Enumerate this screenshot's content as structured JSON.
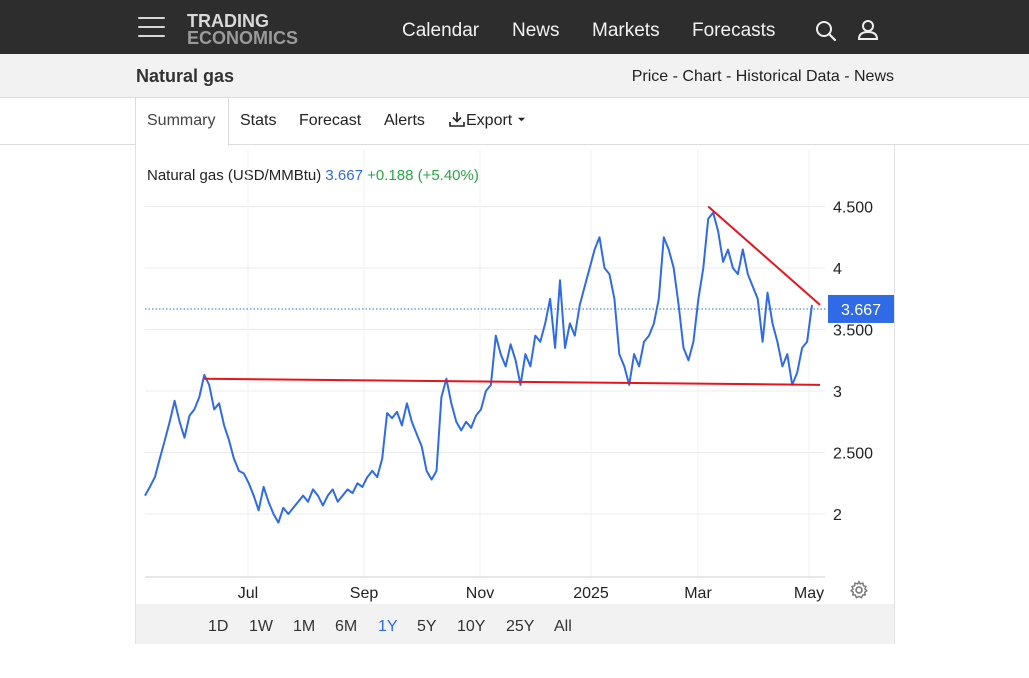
{
  "nav": {
    "logo_line1": "TRADING",
    "logo_line2": "ECONOMICS",
    "items": [
      "Calendar",
      "News",
      "Markets",
      "Forecasts"
    ]
  },
  "title": {
    "name": "Natural gas",
    "links": [
      "Price",
      "Chart",
      "Historical Data",
      "News"
    ],
    "separator": " - "
  },
  "tabs": [
    "Summary",
    "Stats",
    "Forecast",
    "Alerts",
    "Export"
  ],
  "legend": {
    "name": "Natural gas (USD/MMBtu)",
    "price": "3.667",
    "change": "+0.188 (+5.40%)"
  },
  "ranges": [
    "1D",
    "1W",
    "1M",
    "6M",
    "1Y",
    "5Y",
    "10Y",
    "25Y",
    "All"
  ],
  "active_range": "1Y",
  "colors": {
    "line": "#2f6be6",
    "trendline": "#e8141c",
    "positive": "#28a745",
    "price_badge": "#2f6be6"
  },
  "chart_data": {
    "type": "line",
    "title": "Natural gas (USD/MMBtu)",
    "series": [
      {
        "name": "Natural gas",
        "x_index_start": "2024-05-20",
        "points": [
          [
            "2024-05-20",
            2.15
          ],
          [
            "2024-05-22",
            2.22
          ],
          [
            "2024-05-24",
            2.3
          ],
          [
            "2024-05-27",
            2.45
          ],
          [
            "2024-05-29",
            2.6
          ],
          [
            "2024-05-31",
            2.75
          ],
          [
            "2024-06-03",
            2.92
          ],
          [
            "2024-06-05",
            2.75
          ],
          [
            "2024-06-07",
            2.62
          ],
          [
            "2024-06-10",
            2.8
          ],
          [
            "2024-06-12",
            2.85
          ],
          [
            "2024-06-14",
            2.95
          ],
          [
            "2024-06-17",
            3.13
          ],
          [
            "2024-06-19",
            3.05
          ],
          [
            "2024-06-21",
            2.85
          ],
          [
            "2024-06-24",
            2.9
          ],
          [
            "2024-06-26",
            2.72
          ],
          [
            "2024-06-28",
            2.6
          ],
          [
            "2024-07-01",
            2.45
          ],
          [
            "2024-07-03",
            2.35
          ],
          [
            "2024-07-05",
            2.33
          ],
          [
            "2024-07-08",
            2.25
          ],
          [
            "2024-07-10",
            2.15
          ],
          [
            "2024-07-12",
            2.03
          ],
          [
            "2024-07-15",
            2.22
          ],
          [
            "2024-07-17",
            2.1
          ],
          [
            "2024-07-19",
            2.0
          ],
          [
            "2024-07-22",
            1.93
          ],
          [
            "2024-07-24",
            2.05
          ],
          [
            "2024-07-26",
            2.0
          ],
          [
            "2024-07-29",
            2.05
          ],
          [
            "2024-07-31",
            2.1
          ],
          [
            "2024-08-02",
            2.15
          ],
          [
            "2024-08-05",
            2.1
          ],
          [
            "2024-08-07",
            2.2
          ],
          [
            "2024-08-09",
            2.15
          ],
          [
            "2024-08-12",
            2.07
          ],
          [
            "2024-08-14",
            2.15
          ],
          [
            "2024-08-16",
            2.2
          ],
          [
            "2024-08-19",
            2.1
          ],
          [
            "2024-08-21",
            2.15
          ],
          [
            "2024-08-23",
            2.2
          ],
          [
            "2024-08-26",
            2.17
          ],
          [
            "2024-08-28",
            2.25
          ],
          [
            "2024-08-30",
            2.22
          ],
          [
            "2024-09-02",
            2.3
          ],
          [
            "2024-09-04",
            2.35
          ],
          [
            "2024-09-06",
            2.3
          ],
          [
            "2024-09-09",
            2.45
          ],
          [
            "2024-09-11",
            2.82
          ],
          [
            "2024-09-13",
            2.78
          ],
          [
            "2024-09-16",
            2.83
          ],
          [
            "2024-09-18",
            2.72
          ],
          [
            "2024-09-20",
            2.9
          ],
          [
            "2024-09-23",
            2.75
          ],
          [
            "2024-09-25",
            2.65
          ],
          [
            "2024-09-27",
            2.55
          ],
          [
            "2024-09-30",
            2.35
          ],
          [
            "2024-10-02",
            2.28
          ],
          [
            "2024-10-04",
            2.35
          ],
          [
            "2024-10-07",
            2.95
          ],
          [
            "2024-10-09",
            3.1
          ],
          [
            "2024-10-11",
            2.9
          ],
          [
            "2024-10-14",
            2.75
          ],
          [
            "2024-10-16",
            2.68
          ],
          [
            "2024-10-18",
            2.75
          ],
          [
            "2024-10-21",
            2.7
          ],
          [
            "2024-10-23",
            2.8
          ],
          [
            "2024-10-25",
            2.85
          ],
          [
            "2024-10-28",
            3.0
          ],
          [
            "2024-10-30",
            3.05
          ],
          [
            "2024-11-01",
            3.45
          ],
          [
            "2024-11-04",
            3.3
          ],
          [
            "2024-11-06",
            3.2
          ],
          [
            "2024-11-08",
            3.38
          ],
          [
            "2024-11-11",
            3.25
          ],
          [
            "2024-11-13",
            3.05
          ],
          [
            "2024-11-15",
            3.3
          ],
          [
            "2024-11-18",
            3.2
          ],
          [
            "2024-11-20",
            3.45
          ],
          [
            "2024-11-22",
            3.4
          ],
          [
            "2024-11-25",
            3.55
          ],
          [
            "2024-11-27",
            3.75
          ],
          [
            "2024-11-29",
            3.35
          ],
          [
            "2024-12-02",
            3.9
          ],
          [
            "2024-12-04",
            3.35
          ],
          [
            "2024-12-06",
            3.55
          ],
          [
            "2024-12-09",
            3.45
          ],
          [
            "2024-12-11",
            3.7
          ],
          [
            "2024-12-13",
            3.85
          ],
          [
            "2024-12-16",
            4.0
          ],
          [
            "2024-12-18",
            4.15
          ],
          [
            "2024-12-20",
            4.25
          ],
          [
            "2024-12-23",
            4.0
          ],
          [
            "2024-12-25",
            3.95
          ],
          [
            "2024-12-27",
            3.75
          ],
          [
            "2024-12-30",
            3.3
          ],
          [
            "2025-01-01",
            3.2
          ],
          [
            "2025-01-03",
            3.05
          ],
          [
            "2025-01-06",
            3.3
          ],
          [
            "2025-01-08",
            3.2
          ],
          [
            "2025-01-10",
            3.4
          ],
          [
            "2025-01-13",
            3.45
          ],
          [
            "2025-01-15",
            3.55
          ],
          [
            "2025-01-17",
            3.75
          ],
          [
            "2025-01-20",
            4.25
          ],
          [
            "2025-01-22",
            4.15
          ],
          [
            "2025-01-24",
            4.0
          ],
          [
            "2025-01-27",
            3.7
          ],
          [
            "2025-01-29",
            3.35
          ],
          [
            "2025-01-31",
            3.25
          ],
          [
            "2025-02-03",
            3.4
          ],
          [
            "2025-02-05",
            3.75
          ],
          [
            "2025-02-07",
            4.0
          ],
          [
            "2025-02-10",
            4.4
          ],
          [
            "2025-02-12",
            4.45
          ],
          [
            "2025-02-14",
            4.3
          ],
          [
            "2025-02-17",
            4.05
          ],
          [
            "2025-02-19",
            4.15
          ],
          [
            "2025-02-21",
            4.0
          ],
          [
            "2025-02-24",
            3.95
          ],
          [
            "2025-02-26",
            4.15
          ],
          [
            "2025-02-28",
            3.95
          ],
          [
            "2025-03-03",
            3.85
          ],
          [
            "2025-03-05",
            3.75
          ],
          [
            "2025-03-07",
            3.4
          ],
          [
            "2025-03-10",
            3.8
          ],
          [
            "2025-03-12",
            3.55
          ],
          [
            "2025-03-14",
            3.4
          ],
          [
            "2025-03-17",
            3.2
          ],
          [
            "2025-03-19",
            3.3
          ],
          [
            "2025-03-21",
            3.05
          ],
          [
            "2025-03-24",
            3.15
          ],
          [
            "2025-03-26",
            3.35
          ],
          [
            "2025-03-28",
            3.4
          ],
          [
            "2025-03-31",
            3.7
          ]
        ]
      }
    ],
    "x_ticks": [
      "Jul",
      "Sep",
      "Nov",
      "2025",
      "Mar",
      "May"
    ],
    "y_ticks": [
      "2",
      "2.500",
      "3",
      "3.500",
      "4",
      "4.500"
    ],
    "ylim": [
      1.5,
      4.5
    ],
    "last_value": "3.667",
    "trendlines": [
      {
        "from": [
          "2024-06-17",
          3.1
        ],
        "to": [
          "2025-03-31",
          3.05
        ]
      },
      {
        "from": [
          "2025-02-10",
          4.5
        ],
        "to": [
          "2025-03-31",
          3.7
        ]
      }
    ],
    "grid": true,
    "legend": "top-left"
  }
}
